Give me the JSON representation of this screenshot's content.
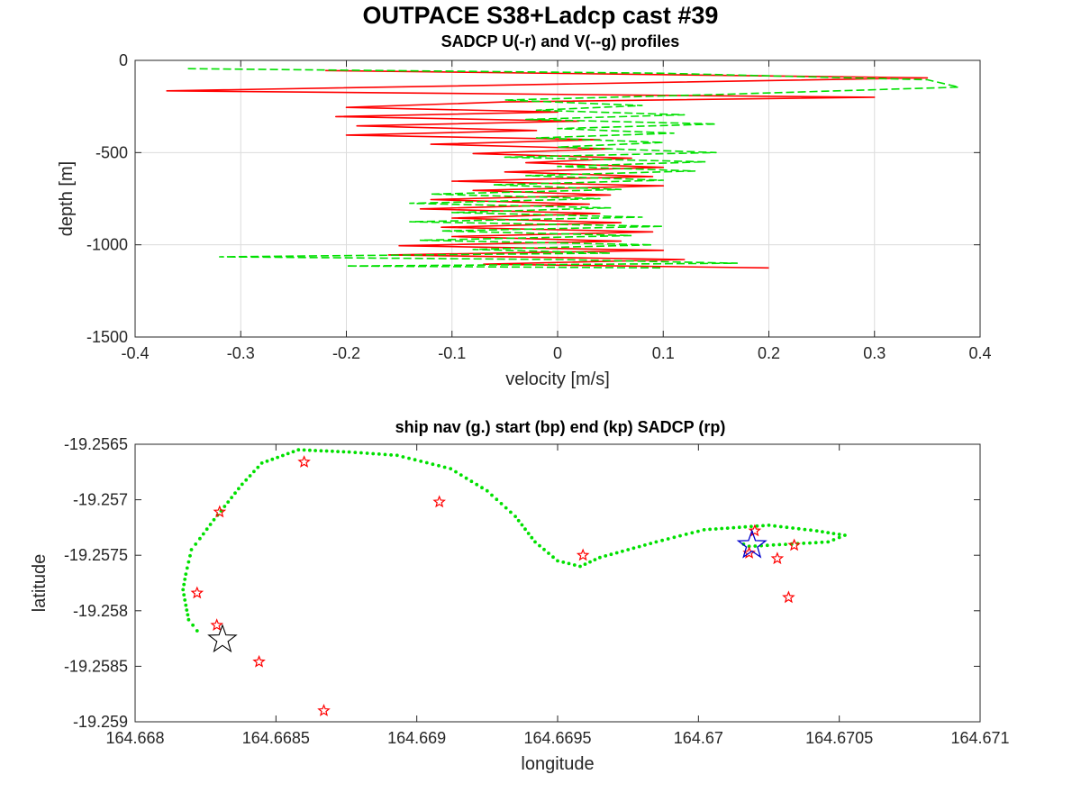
{
  "figure": {
    "title": "OUTPACE S38+Ladcp cast #39"
  },
  "chart_data": [
    {
      "type": "line",
      "title": "SADCP U(-r) and V(--g) profiles",
      "xlabel": "velocity [m/s]",
      "ylabel": "depth [m]",
      "xlim": [
        -0.4,
        0.4
      ],
      "ylim": [
        -1500,
        0
      ],
      "xticks": [
        -0.4,
        -0.3,
        -0.2,
        -0.1,
        0,
        0.1,
        0.2,
        0.3,
        0.4
      ],
      "xtick_labels": [
        "-0.4",
        "-0.3",
        "-0.2",
        "-0.1",
        "0",
        "0.1",
        "0.2",
        "0.3",
        "0.4"
      ],
      "yticks": [
        0,
        -500,
        -1000,
        -1500
      ],
      "ytick_labels": [
        "0",
        "-500",
        "-1000",
        "-1500"
      ],
      "grid": true,
      "series": [
        {
          "color": "#ff0000",
          "style": "solid",
          "points": [
            [
              -0.22,
              -55
            ],
            [
              0.35,
              -95
            ],
            [
              -0.37,
              -165
            ],
            [
              0.3,
              -200
            ],
            [
              -0.05,
              -225
            ],
            [
              -0.2,
              -255
            ],
            [
              0.0,
              -280
            ],
            [
              -0.21,
              -305
            ],
            [
              0.02,
              -330
            ],
            [
              -0.19,
              -355
            ],
            [
              -0.02,
              -380
            ],
            [
              -0.2,
              -405
            ],
            [
              0.04,
              -430
            ],
            [
              -0.12,
              -455
            ],
            [
              0.05,
              -480
            ],
            [
              -0.08,
              -505
            ],
            [
              0.07,
              -530
            ],
            [
              -0.03,
              -555
            ],
            [
              0.1,
              -580
            ],
            [
              -0.05,
              -605
            ],
            [
              0.09,
              -630
            ],
            [
              -0.1,
              -655
            ],
            [
              0.1,
              -680
            ],
            [
              -0.08,
              -705
            ],
            [
              0.05,
              -730
            ],
            [
              -0.12,
              -755
            ],
            [
              0.03,
              -780
            ],
            [
              -0.13,
              -805
            ],
            [
              0.04,
              -830
            ],
            [
              -0.1,
              -855
            ],
            [
              0.06,
              -880
            ],
            [
              -0.11,
              -905
            ],
            [
              0.09,
              -930
            ],
            [
              -0.1,
              -955
            ],
            [
              0.06,
              -980
            ],
            [
              -0.15,
              -1005
            ],
            [
              0.1,
              -1030
            ],
            [
              -0.16,
              -1055
            ],
            [
              0.12,
              -1080
            ],
            [
              -0.07,
              -1105
            ],
            [
              0.2,
              -1125
            ]
          ]
        },
        {
          "color": "#00e000",
          "style": "dashed",
          "points": [
            [
              -0.35,
              -45
            ],
            [
              0.1,
              -70
            ],
            [
              0.35,
              -105
            ],
            [
              0.38,
              -145
            ],
            [
              0.15,
              -185
            ],
            [
              -0.05,
              -215
            ],
            [
              0.08,
              -245
            ],
            [
              -0.02,
              -270
            ],
            [
              0.12,
              -295
            ],
            [
              -0.03,
              -320
            ],
            [
              0.15,
              -345
            ],
            [
              0.0,
              -370
            ],
            [
              0.11,
              -395
            ],
            [
              -0.02,
              -420
            ],
            [
              0.1,
              -445
            ],
            [
              0.0,
              -470
            ],
            [
              0.15,
              -500
            ],
            [
              -0.05,
              -525
            ],
            [
              0.14,
              -550
            ],
            [
              0.0,
              -575
            ],
            [
              0.13,
              -600
            ],
            [
              -0.03,
              -625
            ],
            [
              0.1,
              -650
            ],
            [
              -0.06,
              -675
            ],
            [
              0.06,
              -700
            ],
            [
              -0.12,
              -725
            ],
            [
              0.04,
              -750
            ],
            [
              -0.14,
              -775
            ],
            [
              0.05,
              -800
            ],
            [
              -0.1,
              -825
            ],
            [
              0.08,
              -850
            ],
            [
              -0.14,
              -875
            ],
            [
              0.1,
              -900
            ],
            [
              -0.11,
              -925
            ],
            [
              0.07,
              -950
            ],
            [
              -0.13,
              -975
            ],
            [
              0.09,
              -1000
            ],
            [
              -0.08,
              -1025
            ],
            [
              0.05,
              -1045
            ],
            [
              -0.32,
              -1065
            ],
            [
              0.0,
              -1080
            ],
            [
              0.17,
              -1100
            ],
            [
              -0.2,
              -1115
            ],
            [
              0.1,
              -1125
            ]
          ]
        }
      ]
    },
    {
      "type": "scatter",
      "title": "ship nav (g.) start (bp) end (kp) SADCP (rp)",
      "xlabel": "longitude",
      "ylabel": "latitude",
      "xlim": [
        164.668,
        164.671
      ],
      "ylim": [
        -19.259,
        -19.2565
      ],
      "xticks": [
        164.668,
        164.6685,
        164.669,
        164.6695,
        164.67,
        164.6705,
        164.671
      ],
      "xtick_labels": [
        "164.668",
        "164.6685",
        "164.669",
        "164.6695",
        "164.67",
        "164.6705",
        "164.671"
      ],
      "yticks": [
        -19.2565,
        -19.257,
        -19.2575,
        -19.258,
        -19.2585,
        -19.259
      ],
      "ytick_labels": [
        "-19.2565",
        "-19.257",
        "-19.2575",
        "-19.258",
        "-19.2585",
        "-19.259"
      ],
      "grid": false,
      "ship_track": [
        [
          164.66822,
          -19.25818
        ],
        [
          164.66819,
          -19.25808
        ],
        [
          164.66818,
          -19.25795
        ],
        [
          164.66817,
          -19.25781
        ],
        [
          164.66818,
          -19.25767
        ],
        [
          164.6682,
          -19.25745
        ],
        [
          164.66823,
          -19.25735
        ],
        [
          164.66828,
          -19.25718
        ],
        [
          164.66833,
          -19.25702
        ],
        [
          164.66838,
          -19.25686
        ],
        [
          164.66845,
          -19.25667
        ],
        [
          164.66858,
          -19.25655
        ],
        [
          164.66876,
          -19.25657
        ],
        [
          164.66893,
          -19.2566
        ],
        [
          164.66912,
          -19.25672
        ],
        [
          164.66925,
          -19.25692
        ],
        [
          164.66935,
          -19.25715
        ],
        [
          164.66942,
          -19.25738
        ],
        [
          164.6695,
          -19.25755
        ],
        [
          164.66958,
          -19.2576
        ],
        [
          164.66965,
          -19.25752
        ],
        [
          164.66985,
          -19.25738
        ],
        [
          164.67002,
          -19.25727
        ],
        [
          164.67025,
          -19.25723
        ],
        [
          164.67042,
          -19.25728
        ],
        [
          164.67052,
          -19.25732
        ],
        [
          164.67046,
          -19.25738
        ],
        [
          164.67018,
          -19.25742
        ],
        [
          164.67014,
          -19.25738
        ]
      ],
      "sadcp_points": [
        [
          164.6686,
          -19.25666
        ],
        [
          164.6683,
          -19.25711
        ],
        [
          164.66908,
          -19.25702
        ],
        [
          164.66822,
          -19.25784
        ],
        [
          164.66829,
          -19.25813
        ],
        [
          164.66844,
          -19.25846
        ],
        [
          164.66867,
          -19.2589
        ],
        [
          164.66959,
          -19.2575
        ],
        [
          164.6702,
          -19.25728
        ],
        [
          164.67034,
          -19.25741
        ],
        [
          164.67028,
          -19.25753
        ],
        [
          164.67018,
          -19.25748
        ],
        [
          164.67032,
          -19.25788
        ]
      ],
      "start_point": [
        164.66831,
        -19.25826
      ],
      "end_point": [
        164.67019,
        -19.25741
      ],
      "colors": {
        "track": "#00e000",
        "sadcp": "#ff0000",
        "start": "#000000",
        "end": "#0000cc"
      }
    }
  ]
}
